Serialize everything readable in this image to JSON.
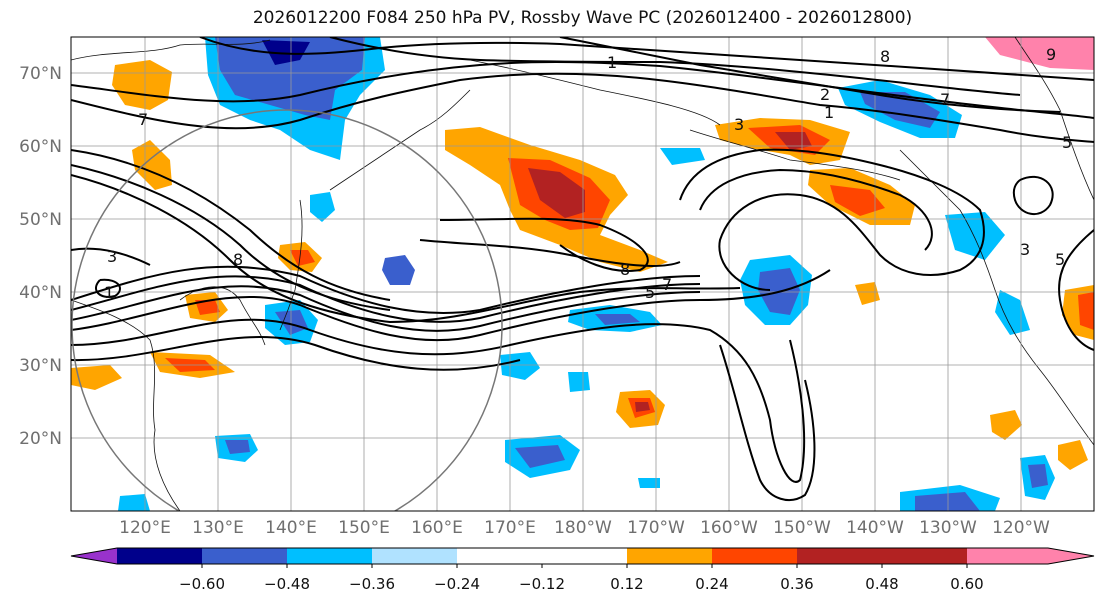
{
  "title": "2026012200 F084 250 hPa PV, Rossby Wave PC (2026012400 - 2026012800)",
  "lat_labels": [
    "70°N",
    "60°N",
    "50°N",
    "40°N",
    "30°N",
    "20°N"
  ],
  "lon_labels": [
    "120°E",
    "130°E",
    "140°E",
    "150°E",
    "160°E",
    "170°E",
    "180°W",
    "170°W",
    "160°W",
    "150°W",
    "140°W",
    "130°W",
    "120°W"
  ],
  "colorbar": {
    "ticks": [
      "−0.60",
      "−0.48",
      "−0.36",
      "−0.24",
      "−0.12",
      "0.12",
      "0.24",
      "0.36",
      "0.48",
      "0.60"
    ],
    "colors": [
      "#9932CC",
      "#00008B",
      "#3A5FCD",
      "#00BFFF",
      "#B0E2FF",
      "#FFFFFF",
      "#FFEC8B",
      "#FFA500",
      "#FF4500",
      "#B22222",
      "#FF82AB"
    ]
  },
  "contour_labels": [
    "1",
    "2",
    "3",
    "5",
    "7",
    "8",
    "1",
    "3",
    "8",
    "5",
    "7",
    "8",
    "9",
    "7",
    "5",
    "1",
    "3"
  ]
}
